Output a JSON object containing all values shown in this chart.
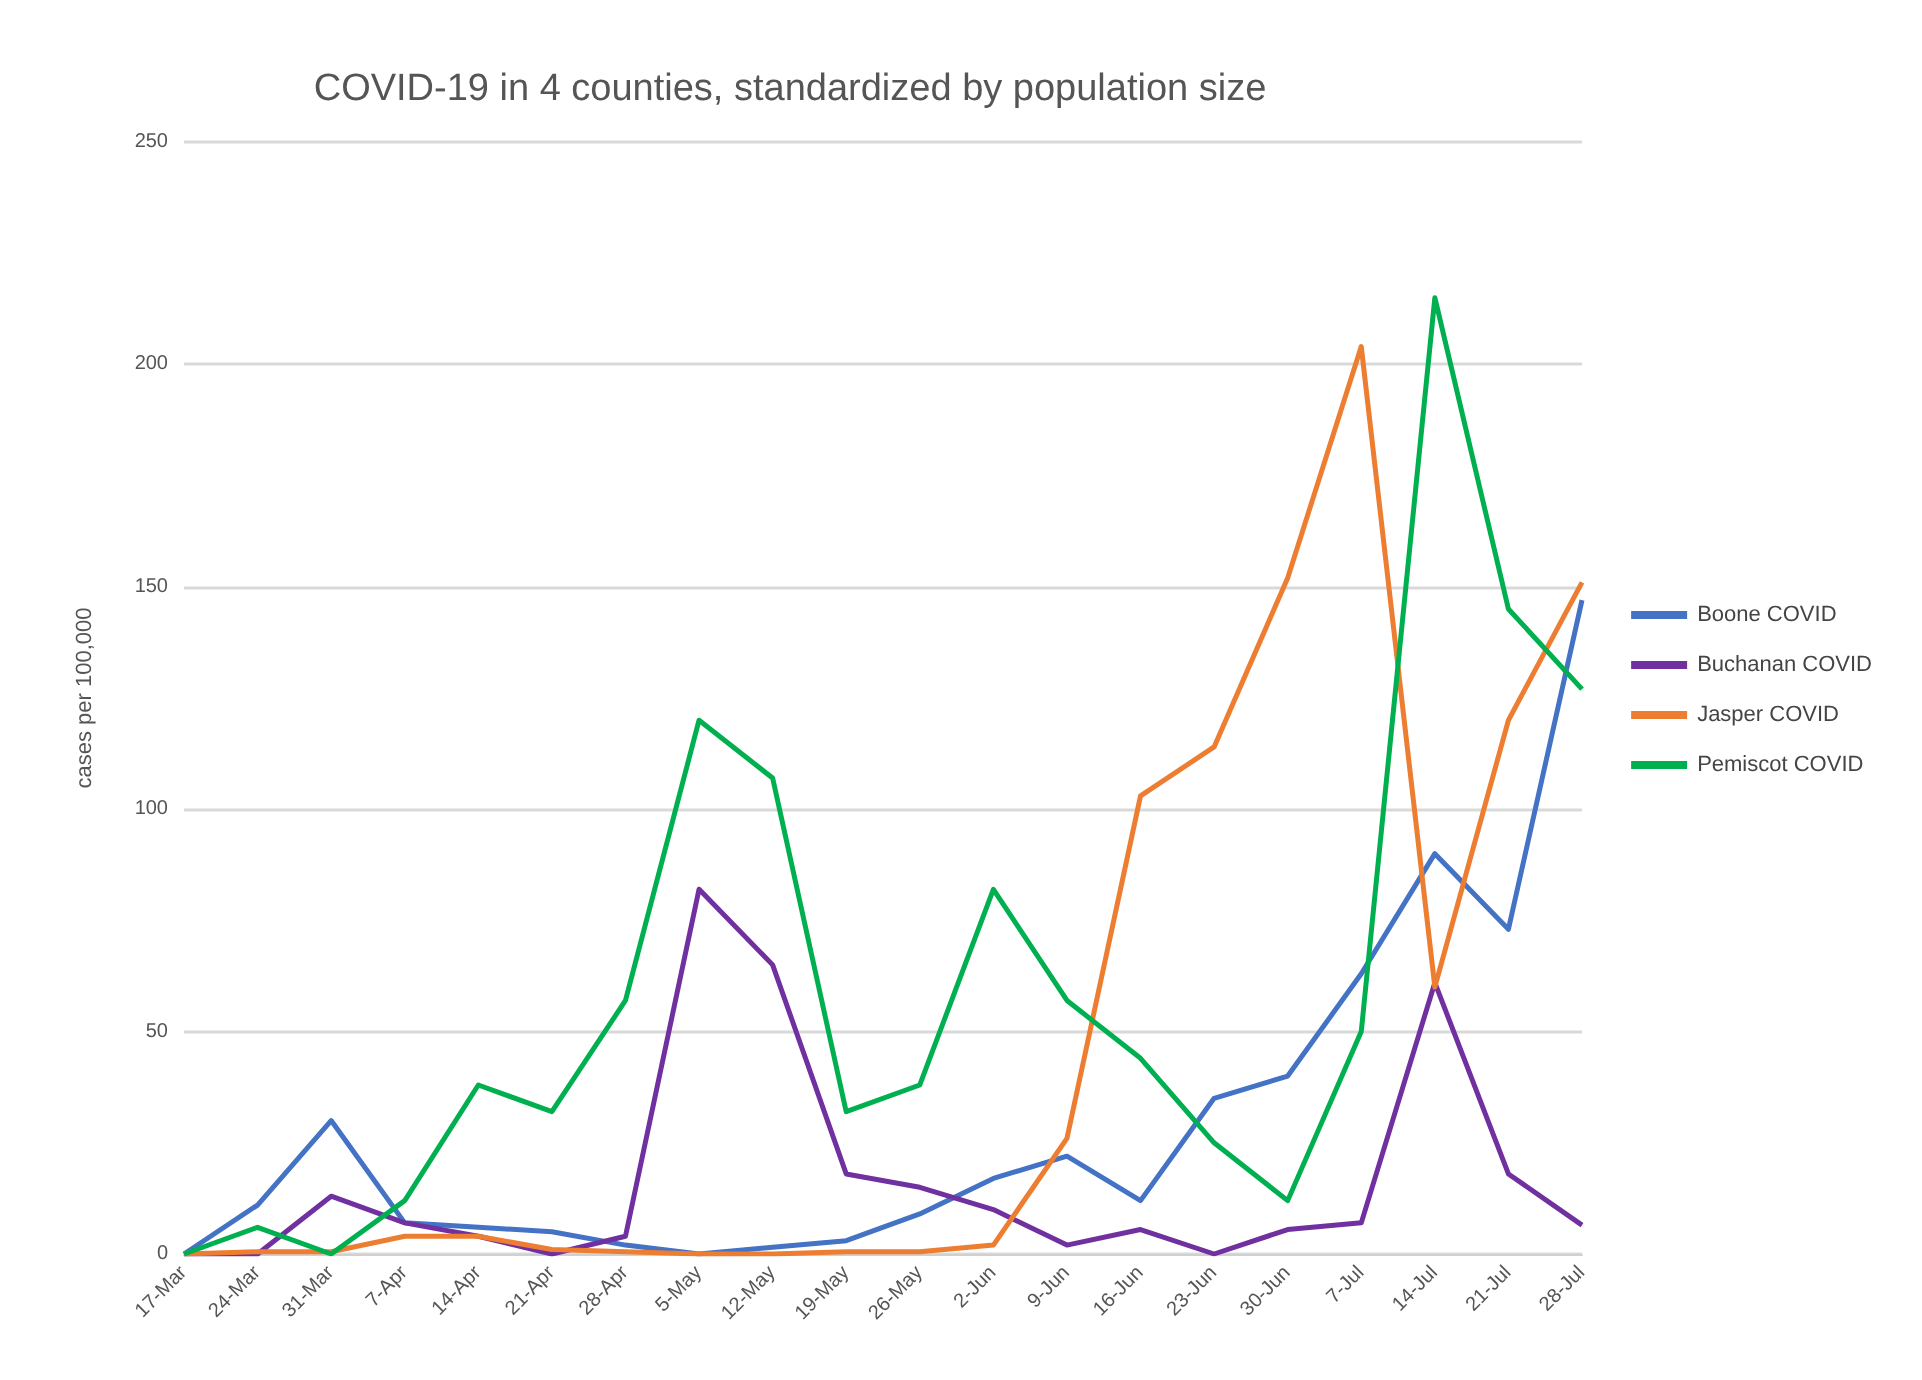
{
  "chart_data": {
    "type": "line",
    "title": "COVID-19 in 4 counties, standardized by population size",
    "ylabel": "cases per 100,000",
    "categories": [
      "17-Mar",
      "24-Mar",
      "31-Mar",
      "7-Apr",
      "14-Apr",
      "21-Apr",
      "28-Apr",
      "5-May",
      "12-May",
      "19-May",
      "26-May",
      "2-Jun",
      "9-Jun",
      "16-Jun",
      "23-Jun",
      "30-Jun",
      "7-Jul",
      "14-Jul",
      "21-Jul",
      "28-Jul"
    ],
    "series": [
      {
        "name": "Boone COVID",
        "color": "#4472c4",
        "values": [
          0,
          11,
          30,
          7,
          6,
          5,
          2,
          0,
          1.5,
          3,
          9,
          17,
          22,
          12,
          35,
          40,
          63,
          90,
          73,
          147
        ]
      },
      {
        "name": "Buchanan COVID",
        "color": "#7030a0",
        "values": [
          0,
          0,
          13,
          7,
          4,
          0,
          4,
          82,
          65,
          18,
          15,
          10,
          2,
          5.5,
          0,
          5.5,
          7,
          61,
          18,
          6.5
        ]
      },
      {
        "name": "Jasper COVID",
        "color": "#ed7d31",
        "values": [
          0,
          0.5,
          0.5,
          4,
          4,
          1,
          0.5,
          0,
          0,
          0.5,
          0.5,
          2,
          26,
          103,
          114,
          152,
          204,
          60,
          120,
          151
        ]
      },
      {
        "name": "Pemiscot COVID",
        "color": "#00b050",
        "values": [
          0,
          6,
          0,
          12,
          38,
          32,
          57,
          120,
          107,
          32,
          38,
          82,
          57,
          44,
          25,
          12,
          50,
          215,
          145,
          127
        ]
      }
    ],
    "ylim": [
      0,
      250
    ],
    "yticks": [
      0,
      50,
      100,
      150,
      200,
      250
    ],
    "grid": "y",
    "legend": "right",
    "marker": "none",
    "line_style": "solid"
  }
}
